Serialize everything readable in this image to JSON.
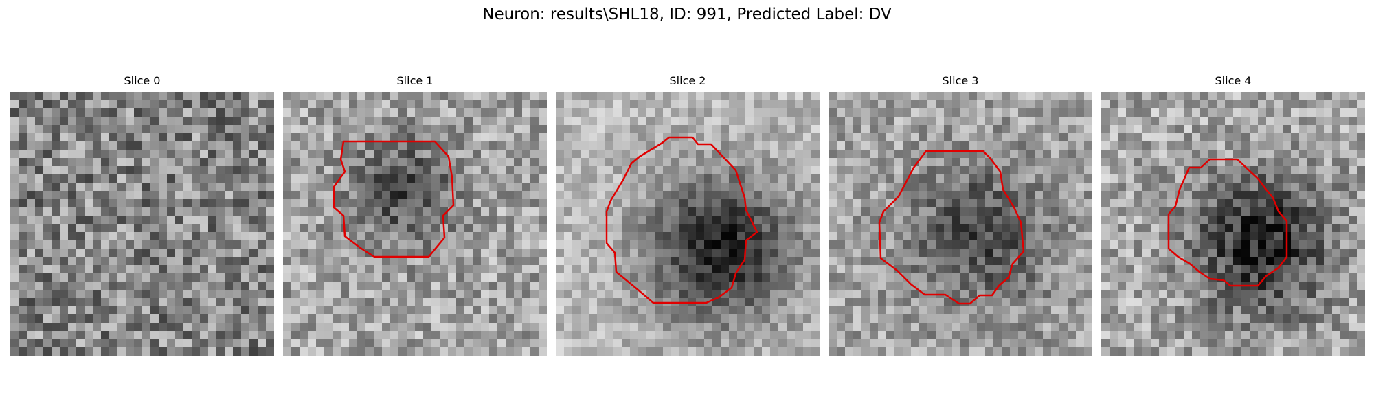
{
  "figure": {
    "title": "Neuron: results\\SHL18, ID: 991, Predicted Label: DV"
  },
  "slices": [
    {
      "title": "Slice 0",
      "has_contour": false
    },
    {
      "title": "Slice 1",
      "has_contour": true
    },
    {
      "title": "Slice 2",
      "has_contour": true
    },
    {
      "title": "Slice 3",
      "has_contour": true
    },
    {
      "title": "Slice 4",
      "has_contour": true
    }
  ],
  "colors": {
    "contour": "#e00000",
    "background": "#ffffff"
  }
}
